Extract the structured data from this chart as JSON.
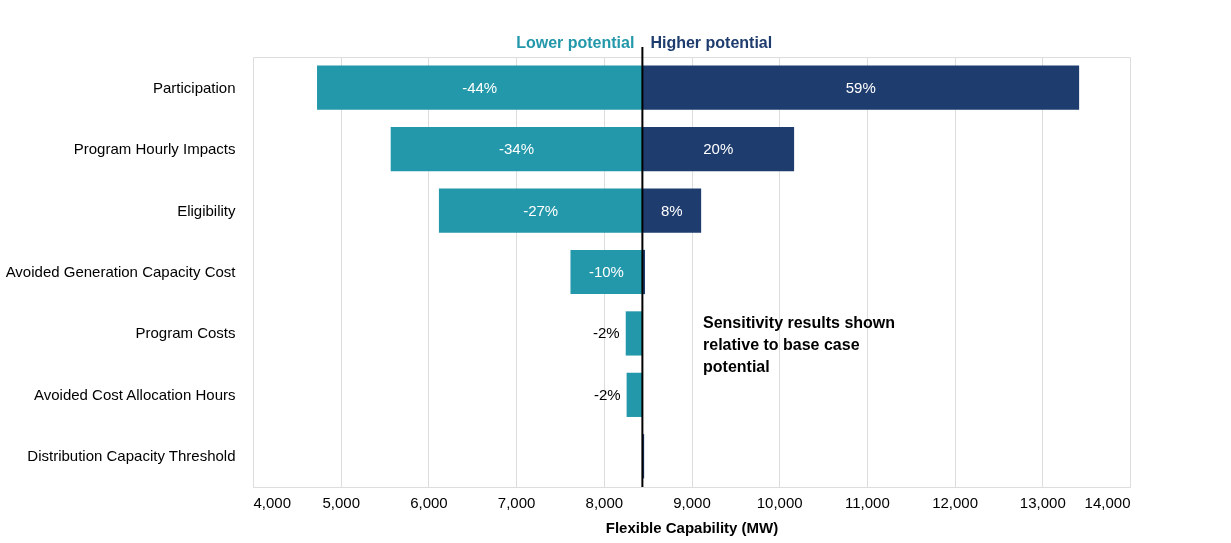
{
  "chart_data": {
    "type": "bar",
    "orientation": "horizontal",
    "xlabel": "Flexible Capability (MW)",
    "categories": [
      "Participation",
      "Program Hourly Impacts",
      "Eligibility",
      "Avoided Generation Capacity Cost",
      "Program Costs",
      "Avoided Cost Allocation Hours",
      "Distribution Capacity Threshold"
    ],
    "series": [
      {
        "name": "Lower potential",
        "color": "#2398aa",
        "base": [
          4730,
          5570,
          6120,
          7620,
          8250,
          8260,
          null
        ],
        "values": [
          3710,
          2870,
          2320,
          820,
          190,
          180,
          null
        ]
      },
      {
        "name": "Higher potential",
        "color": "#1e3c6e",
        "base": [
          8440,
          8440,
          8440,
          8440,
          null,
          null,
          8440
        ],
        "values": [
          4980,
          1730,
          670,
          30,
          null,
          null,
          20
        ]
      }
    ],
    "xlim": [
      4000,
      14000
    ],
    "xticks": [
      {
        "value": 4000,
        "label": "4,000"
      },
      {
        "value": 5000,
        "label": "5,000"
      },
      {
        "value": 6000,
        "label": "6,000"
      },
      {
        "value": 7000,
        "label": "7,000"
      },
      {
        "value": 8000,
        "label": "8,000"
      },
      {
        "value": 9000,
        "label": "9,000"
      },
      {
        "value": 10000,
        "label": "10,000"
      },
      {
        "value": 11000,
        "label": "11,000"
      },
      {
        "value": 12000,
        "label": "12,000"
      },
      {
        "value": 13000,
        "label": "13,000"
      },
      {
        "value": 14000,
        "label": "14,000"
      }
    ],
    "grid": "x",
    "ref_lines": [
      {
        "axis": "x",
        "value": 8440,
        "label": null,
        "color": "#000000"
      }
    ],
    "annotations": [
      "Sensitivity results shown relative to base case potential",
      {
        "text": "-44%",
        "x": 6585,
        "y": "Participation"
      },
      {
        "text": "59%",
        "x": 10930,
        "y": "Participation"
      },
      {
        "text": "-34%",
        "x": 7005,
        "y": "Program Hourly Impacts"
      },
      {
        "text": "20%",
        "x": 9305,
        "y": "Program Hourly Impacts"
      },
      {
        "text": "-27%",
        "x": 7280,
        "y": "Eligibility"
      },
      {
        "text": "8%",
        "x": 8775,
        "y": "Eligibility"
      },
      {
        "text": "-10%",
        "x": 8030,
        "y": "Avoided Generation Capacity Cost"
      },
      {
        "text": "-2%",
        "x": 8250,
        "y": "Program Costs"
      },
      {
        "text": "-2%",
        "x": 8260,
        "y": "Avoided Cost Allocation Hours"
      }
    ]
  }
}
